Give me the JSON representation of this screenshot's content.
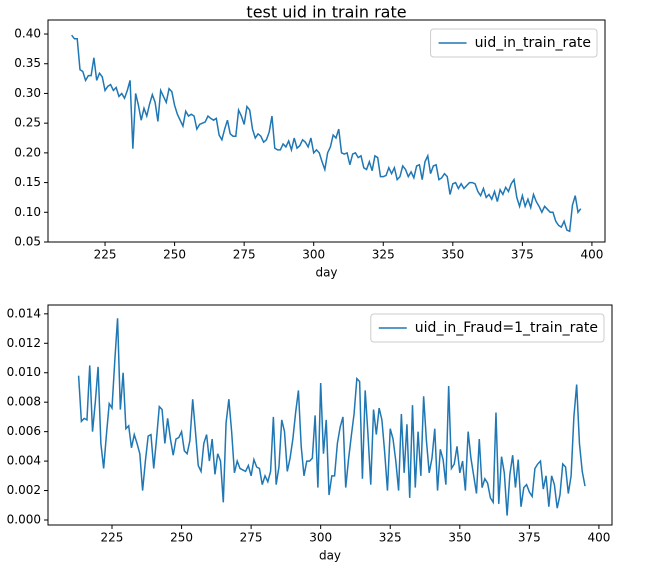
{
  "chart_data": [
    {
      "type": "line",
      "title": "test uid in train rate",
      "xlabel": "day",
      "x": [
        213,
        214,
        215,
        216,
        217,
        218,
        219,
        220,
        221,
        222,
        223,
        224,
        225,
        226,
        227,
        228,
        229,
        230,
        231,
        232,
        233,
        234,
        235,
        236,
        237,
        238,
        239,
        240,
        241,
        242,
        243,
        244,
        245,
        246,
        247,
        248,
        249,
        250,
        251,
        252,
        253,
        254,
        255,
        256,
        257,
        258,
        259,
        260,
        261,
        262,
        263,
        264,
        265,
        266,
        267,
        268,
        269,
        270,
        271,
        272,
        273,
        274,
        275,
        276,
        277,
        278,
        279,
        280,
        281,
        282,
        283,
        284,
        285,
        286,
        287,
        288,
        289,
        290,
        291,
        292,
        293,
        294,
        295,
        296,
        297,
        298,
        299,
        300,
        301,
        302,
        303,
        304,
        305,
        306,
        307,
        308,
        309,
        310,
        311,
        312,
        313,
        314,
        315,
        316,
        317,
        318,
        319,
        320,
        321,
        322,
        323,
        324,
        325,
        326,
        327,
        328,
        329,
        330,
        331,
        332,
        333,
        334,
        335,
        336,
        337,
        338,
        339,
        340,
        341,
        342,
        343,
        344,
        345,
        346,
        347,
        348,
        349,
        350,
        351,
        352,
        353,
        354,
        355,
        356,
        357,
        358,
        359,
        360,
        361,
        362,
        363,
        364,
        365,
        366,
        367,
        368,
        369,
        370,
        371,
        372,
        373,
        374,
        375,
        376,
        377,
        378,
        379,
        380,
        381,
        382,
        383,
        384,
        385,
        386,
        387,
        388,
        389,
        390,
        391,
        392,
        393,
        394,
        395,
        396
      ],
      "series": [
        {
          "name": "uid_in_train_rate",
          "color": "#1f77b4",
          "values": [
            0.398,
            0.392,
            0.392,
            0.34,
            0.337,
            0.322,
            0.33,
            0.33,
            0.36,
            0.322,
            0.334,
            0.328,
            0.305,
            0.312,
            0.315,
            0.305,
            0.31,
            0.295,
            0.3,
            0.292,
            0.305,
            0.322,
            0.207,
            0.3,
            0.28,
            0.255,
            0.275,
            0.262,
            0.282,
            0.298,
            0.285,
            0.253,
            0.305,
            0.295,
            0.285,
            0.308,
            0.303,
            0.28,
            0.265,
            0.255,
            0.245,
            0.27,
            0.262,
            0.265,
            0.262,
            0.24,
            0.248,
            0.25,
            0.252,
            0.262,
            0.258,
            0.255,
            0.258,
            0.23,
            0.222,
            0.24,
            0.255,
            0.232,
            0.228,
            0.228,
            0.272,
            0.262,
            0.248,
            0.278,
            0.272,
            0.24,
            0.225,
            0.232,
            0.228,
            0.218,
            0.222,
            0.235,
            0.262,
            0.208,
            0.205,
            0.205,
            0.215,
            0.21,
            0.22,
            0.205,
            0.225,
            0.208,
            0.212,
            0.222,
            0.218,
            0.21,
            0.225,
            0.2,
            0.205,
            0.2,
            0.185,
            0.172,
            0.2,
            0.21,
            0.23,
            0.225,
            0.24,
            0.2,
            0.198,
            0.2,
            0.18,
            0.198,
            0.2,
            0.192,
            0.195,
            0.175,
            0.172,
            0.185,
            0.17,
            0.195,
            0.192,
            0.16,
            0.16,
            0.162,
            0.175,
            0.165,
            0.175,
            0.155,
            0.16,
            0.178,
            0.172,
            0.16,
            0.168,
            0.158,
            0.178,
            0.18,
            0.155,
            0.185,
            0.195,
            0.165,
            0.178,
            0.18,
            0.155,
            0.158,
            0.165,
            0.16,
            0.13,
            0.148,
            0.15,
            0.14,
            0.148,
            0.14,
            0.145,
            0.15,
            0.15,
            0.148,
            0.135,
            0.128,
            0.14,
            0.125,
            0.13,
            0.122,
            0.135,
            0.118,
            0.138,
            0.13,
            0.142,
            0.135,
            0.148,
            0.155,
            0.125,
            0.11,
            0.128,
            0.11,
            0.122,
            0.108,
            0.13,
            0.118,
            0.11,
            0.1,
            0.11,
            0.105,
            0.1,
            0.1,
            0.085,
            0.078,
            0.075,
            0.085,
            0.07,
            0.068,
            0.112,
            0.128,
            0.1,
            0.106
          ]
        }
      ],
      "xlim": [
        204.5,
        404.7
      ],
      "xticks": [
        225,
        250,
        275,
        300,
        325,
        350,
        375,
        400
      ],
      "ylim": [
        0.05,
        0.4236
      ],
      "yticks": [
        {
          "value": 0.05,
          "label": "0.05"
        },
        {
          "value": 0.1,
          "label": "0.10"
        },
        {
          "value": 0.15,
          "label": "0.15"
        },
        {
          "value": 0.2,
          "label": "0.20"
        },
        {
          "value": 0.25,
          "label": "0.25"
        },
        {
          "value": 0.3,
          "label": "0.30"
        },
        {
          "value": 0.35,
          "label": "0.35"
        },
        {
          "value": 0.4,
          "label": "0.40"
        }
      ],
      "legend": "upper right"
    },
    {
      "type": "line",
      "xlabel": "day",
      "x": [
        213,
        214,
        215,
        216,
        217,
        218,
        219,
        220,
        221,
        222,
        223,
        224,
        225,
        226,
        227,
        228,
        229,
        230,
        231,
        232,
        233,
        234,
        235,
        236,
        237,
        238,
        239,
        240,
        241,
        242,
        243,
        244,
        245,
        246,
        247,
        248,
        249,
        250,
        251,
        252,
        253,
        254,
        255,
        256,
        257,
        258,
        259,
        260,
        261,
        262,
        263,
        264,
        265,
        266,
        267,
        268,
        269,
        270,
        271,
        272,
        273,
        274,
        275,
        276,
        277,
        278,
        279,
        280,
        281,
        282,
        283,
        284,
        285,
        286,
        287,
        288,
        289,
        290,
        291,
        292,
        293,
        294,
        295,
        296,
        297,
        298,
        299,
        300,
        301,
        302,
        303,
        304,
        305,
        306,
        307,
        308,
        309,
        310,
        311,
        312,
        313,
        314,
        315,
        316,
        317,
        318,
        319,
        320,
        321,
        322,
        323,
        324,
        325,
        326,
        327,
        328,
        329,
        330,
        331,
        332,
        333,
        334,
        335,
        336,
        337,
        338,
        339,
        340,
        341,
        342,
        343,
        344,
        345,
        346,
        347,
        348,
        349,
        350,
        351,
        352,
        353,
        354,
        355,
        356,
        357,
        358,
        359,
        360,
        361,
        362,
        363,
        364,
        365,
        366,
        367,
        368,
        369,
        370,
        371,
        372,
        373,
        374,
        375,
        376,
        377,
        378,
        379,
        380,
        381,
        382,
        383,
        384,
        385,
        386,
        387,
        388,
        389,
        390,
        391,
        392,
        393,
        394,
        395
      ],
      "series": [
        {
          "name": "uid_in_Fraud=1_train_rate",
          "color": "#1f77b4",
          "values": [
            0.0098,
            0.0067,
            0.0069,
            0.0068,
            0.0105,
            0.006,
            0.008,
            0.0104,
            0.0052,
            0.0035,
            0.0058,
            0.0079,
            0.0076,
            0.0108,
            0.0137,
            0.0075,
            0.01,
            0.0062,
            0.0064,
            0.0049,
            0.0058,
            0.0052,
            0.0045,
            0.002,
            0.004,
            0.0057,
            0.0058,
            0.0035,
            0.0055,
            0.0077,
            0.0075,
            0.0052,
            0.0069,
            0.0055,
            0.0044,
            0.0055,
            0.0056,
            0.006,
            0.0047,
            0.0045,
            0.0054,
            0.0082,
            0.006,
            0.0037,
            0.0033,
            0.0052,
            0.0058,
            0.004,
            0.0055,
            0.0031,
            0.0045,
            0.004,
            0.0012,
            0.0066,
            0.0082,
            0.006,
            0.0032,
            0.004,
            0.0035,
            0.0034,
            0.0033,
            0.0037,
            0.003,
            0.0041,
            0.0036,
            0.0035,
            0.0024,
            0.003,
            0.0026,
            0.0033,
            0.007,
            0.0024,
            0.0036,
            0.0068,
            0.006,
            0.0033,
            0.0042,
            0.0055,
            0.0073,
            0.0088,
            0.005,
            0.003,
            0.004,
            0.004,
            0.0042,
            0.0071,
            0.0022,
            0.0093,
            0.0045,
            0.0068,
            0.0017,
            0.003,
            0.003,
            0.0052,
            0.0063,
            0.007,
            0.0022,
            0.0041,
            0.0057,
            0.0072,
            0.0096,
            0.0094,
            0.0028,
            0.0088,
            0.0058,
            0.0024,
            0.0075,
            0.0058,
            0.0076,
            0.0068,
            0.0046,
            0.002,
            0.0062,
            0.0055,
            0.004,
            0.002,
            0.0072,
            0.0032,
            0.0065,
            0.0015,
            0.0078,
            0.0022,
            0.006,
            0.003,
            0.0084,
            0.0054,
            0.0032,
            0.0042,
            0.0062,
            0.002,
            0.0048,
            0.0041,
            0.0024,
            0.0091,
            0.0035,
            0.0038,
            0.005,
            0.0032,
            0.004,
            0.002,
            0.006,
            0.0042,
            0.003,
            0.0018,
            0.0055,
            0.0022,
            0.0028,
            0.0025,
            0.0015,
            0.0012,
            0.0073,
            0.0011,
            0.0043,
            0.0032,
            0.0003,
            0.0031,
            0.0044,
            0.0022,
            0.0041,
            0.0009,
            0.0022,
            0.0024,
            0.0019,
            0.0016,
            0.0035,
            0.0038,
            0.004,
            0.0021,
            0.003,
            0.0009,
            0.003,
            0.0024,
            0.0008,
            0.0017,
            0.0038,
            0.0036,
            0.0018,
            0.003,
            0.007,
            0.0092,
            0.0052,
            0.0033,
            0.0023
          ]
        }
      ],
      "xlim": [
        202.0,
        404.7
      ],
      "xticks": [
        225,
        250,
        275,
        300,
        325,
        350,
        375,
        400
      ],
      "ylim": [
        -0.00034,
        0.0146
      ],
      "yticks": [
        {
          "value": 0,
          "label": "0.000"
        },
        {
          "value": 0.002,
          "label": "0.002"
        },
        {
          "value": 0.004,
          "label": "0.004"
        },
        {
          "value": 0.006,
          "label": "0.006"
        },
        {
          "value": 0.008,
          "label": "0.008"
        },
        {
          "value": 0.01,
          "label": "0.010"
        },
        {
          "value": 0.012,
          "label": "0.012"
        },
        {
          "value": 0.014,
          "label": "0.014"
        }
      ],
      "legend": "upper right"
    }
  ]
}
